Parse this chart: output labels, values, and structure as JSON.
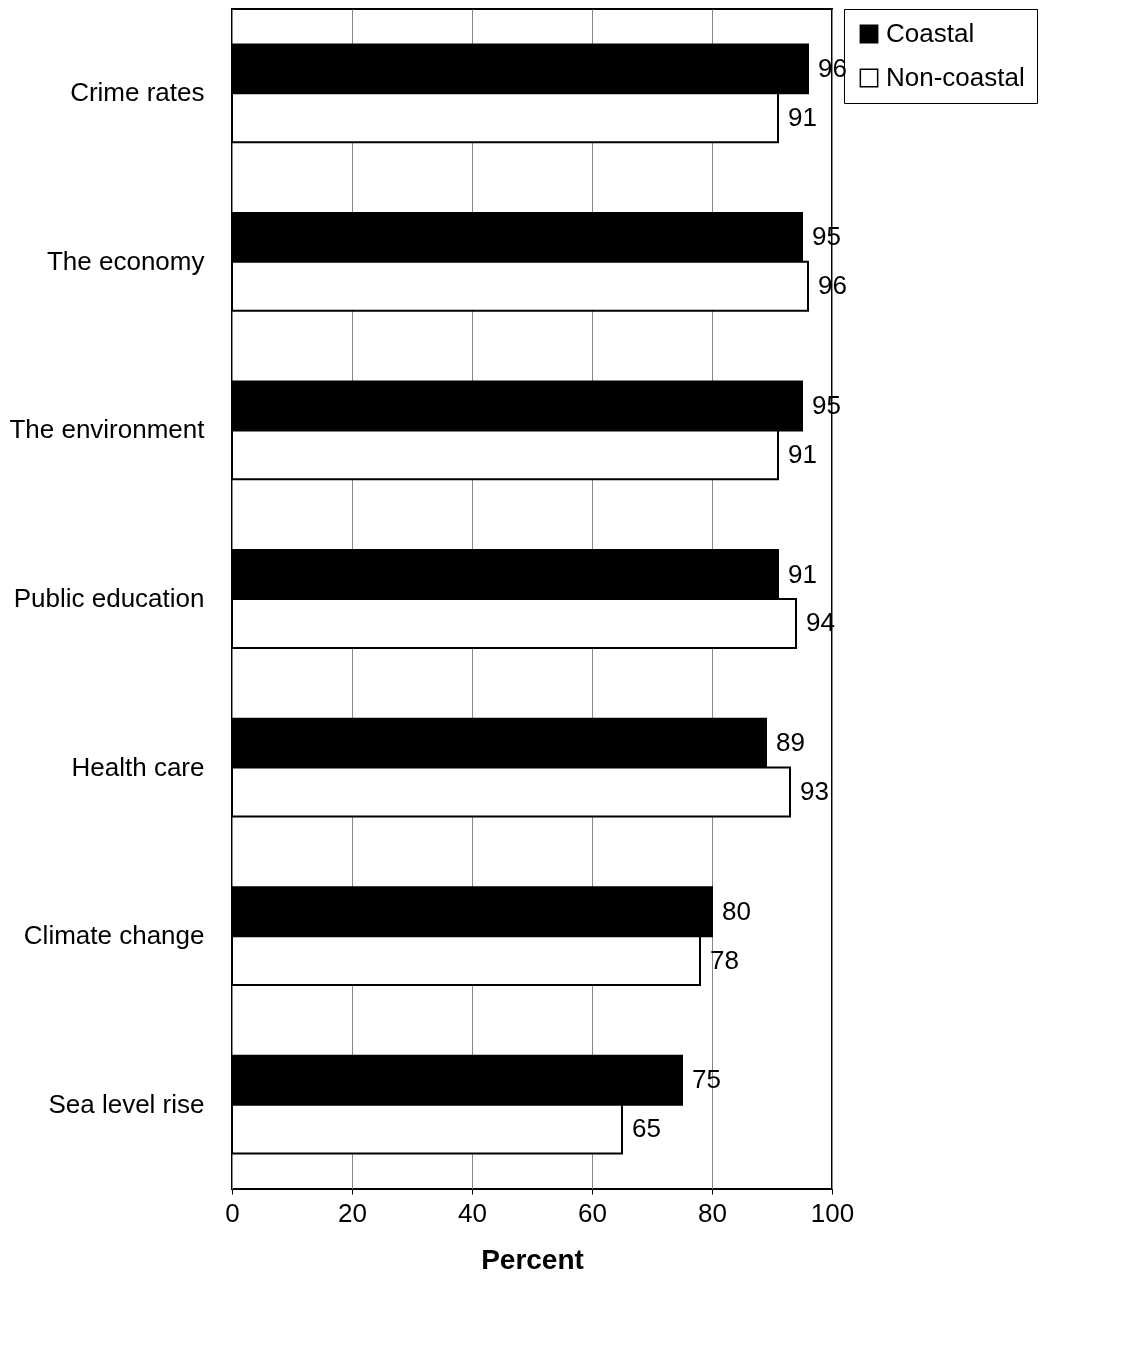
{
  "chart_data": {
    "type": "bar",
    "orientation": "horizontal",
    "xlabel": "Percent",
    "categories": [
      "Crime rates",
      "The economy",
      "The environment",
      "Public education",
      "Health care",
      "Climate change",
      "Sea level rise"
    ],
    "series": [
      {
        "name": "Coastal",
        "color": "#000000",
        "values": [
          96,
          95,
          95,
          91,
          89,
          80,
          75
        ]
      },
      {
        "name": "Non-coastal",
        "color": "#ffffff",
        "values": [
          91,
          96,
          91,
          94,
          93,
          78,
          65
        ]
      }
    ],
    "xlim": [
      0,
      100
    ],
    "xticks": [
      0,
      20,
      40,
      60,
      80,
      100
    ],
    "grid": "x",
    "legend": "right",
    "data_labels": true
  }
}
